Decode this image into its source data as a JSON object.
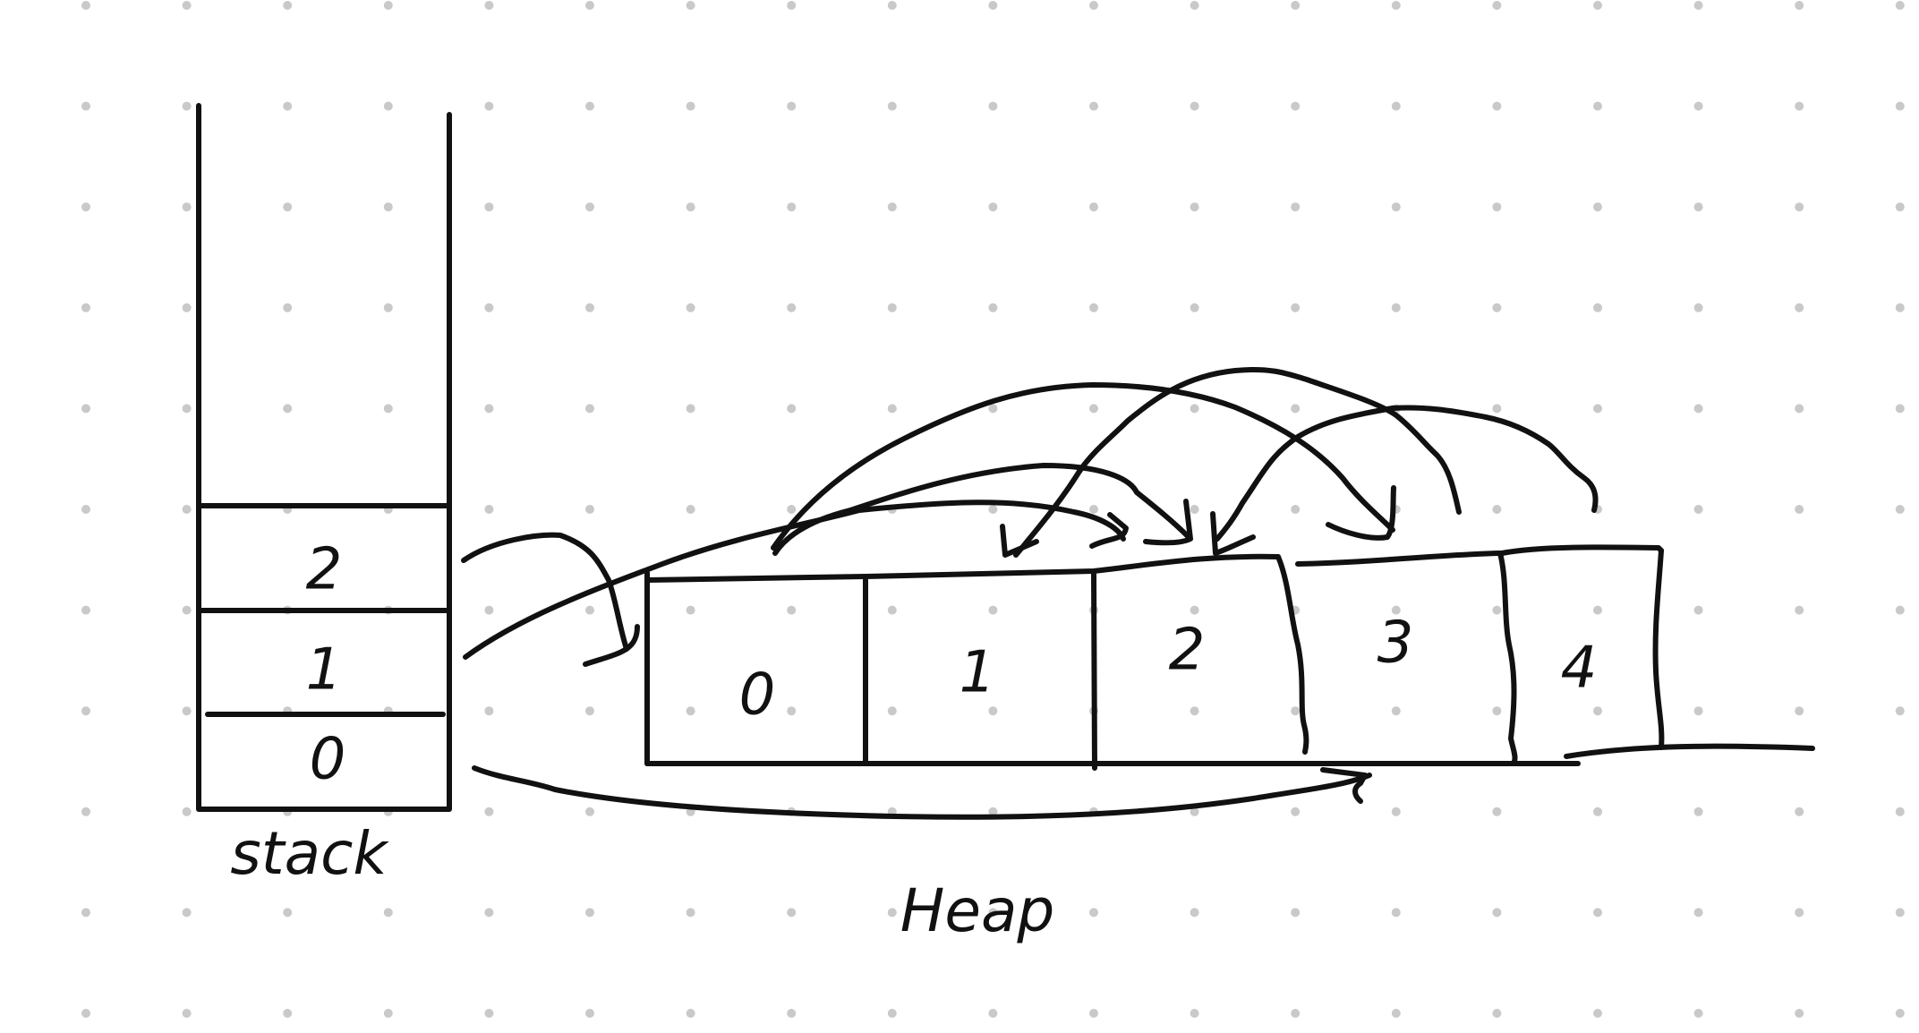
{
  "diagram": {
    "stack": {
      "caption": "stack",
      "slots": [
        "2",
        "1",
        "0"
      ]
    },
    "heap": {
      "caption": "Heap",
      "cells": [
        "0",
        "1",
        "2",
        "3",
        "4"
      ]
    },
    "background": {
      "dot_color": "#c9c9c9",
      "ink_color": "#111111",
      "paper_color": "#ffffff"
    }
  }
}
